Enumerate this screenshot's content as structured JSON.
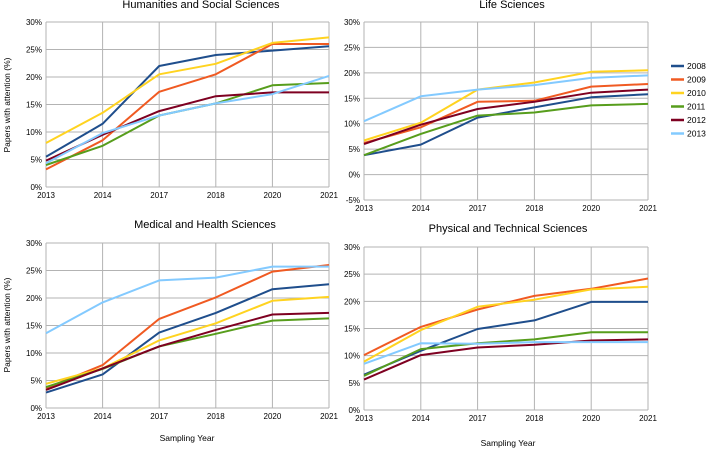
{
  "chart_data": {
    "type": "line",
    "series_colors": {
      "2008": "#1f4e8c",
      "2009": "#f05a22",
      "2010": "#ffd320",
      "2011": "#579d1c",
      "2012": "#7e0021",
      "2013": "#83caff"
    },
    "legend": [
      "2008",
      "2009",
      "2010",
      "2011",
      "2012",
      "2013"
    ],
    "panels": [
      {
        "title": "Humanities and Social Sciences",
        "categories": [
          "2013",
          "2014",
          "2017",
          "2018",
          "2020",
          "2021"
        ],
        "y_ticks": [
          "0%",
          "5%",
          "10%",
          "15%",
          "20%",
          "25%",
          "30%"
        ],
        "ylim": [
          0,
          30
        ],
        "ylabel": "Papers with attention (%)",
        "xlabel": "",
        "series": [
          {
            "name": "2008",
            "values": [
              5.5,
              11.5,
              22.0,
              24.0,
              24.8,
              25.6
            ]
          },
          {
            "name": "2009",
            "values": [
              3.2,
              8.5,
              17.3,
              20.5,
              26.0,
              26.0
            ]
          },
          {
            "name": "2010",
            "values": [
              8.0,
              13.5,
              20.5,
              22.4,
              26.2,
              27.2
            ]
          },
          {
            "name": "2011",
            "values": [
              4.0,
              7.5,
              13.0,
              15.2,
              18.5,
              18.9
            ]
          },
          {
            "name": "2012",
            "values": [
              4.8,
              9.5,
              13.8,
              16.5,
              17.2,
              17.2
            ]
          },
          {
            "name": "2013",
            "values": [
              4.3,
              9.8,
              13.0,
              15.2,
              16.9,
              20.2
            ]
          }
        ]
      },
      {
        "title": "Life Sciences",
        "categories": [
          "2013",
          "2014",
          "2017",
          "2018",
          "2020",
          "2021"
        ],
        "y_ticks": [
          "-5%",
          "0%",
          "5%",
          "10%",
          "15%",
          "20%",
          "25%",
          "30%"
        ],
        "ylim": [
          -5,
          30
        ],
        "ylabel": "",
        "xlabel": "",
        "series": [
          {
            "name": "2008",
            "values": [
              3.8,
              5.9,
              11.2,
              13.2,
              15.2,
              15.8
            ]
          },
          {
            "name": "2009",
            "values": [
              6.2,
              9.3,
              14.3,
              14.5,
              17.3,
              17.8
            ]
          },
          {
            "name": "2010",
            "values": [
              6.7,
              10.2,
              16.7,
              18.1,
              20.2,
              20.5
            ]
          },
          {
            "name": "2011",
            "values": [
              3.8,
              8.0,
              11.6,
              12.2,
              13.6,
              13.9
            ]
          },
          {
            "name": "2012",
            "values": [
              6.0,
              9.8,
              12.9,
              14.3,
              16.1,
              16.7
            ]
          },
          {
            "name": "2013",
            "values": [
              10.5,
              15.4,
              16.7,
              17.6,
              19.0,
              19.5
            ]
          }
        ]
      },
      {
        "title": "Medical and Health Sciences",
        "categories": [
          "2013",
          "2014",
          "2017",
          "2018",
          "2020",
          "2021"
        ],
        "y_ticks": [
          "0%",
          "5%",
          "10%",
          "15%",
          "20%",
          "25%",
          "30%"
        ],
        "ylim": [
          0,
          30
        ],
        "ylabel": "Papers with attention (%)",
        "xlabel": "Sampling Year",
        "series": [
          {
            "name": "2008",
            "values": [
              2.8,
              6.1,
              13.7,
              17.3,
              21.6,
              22.5
            ]
          },
          {
            "name": "2009",
            "values": [
              3.6,
              7.8,
              16.2,
              20.1,
              24.8,
              26.0
            ]
          },
          {
            "name": "2010",
            "values": [
              4.4,
              7.2,
              12.3,
              15.4,
              19.5,
              20.2
            ]
          },
          {
            "name": "2011",
            "values": [
              3.8,
              7.1,
              11.2,
              13.5,
              15.9,
              16.3
            ]
          },
          {
            "name": "2012",
            "values": [
              3.3,
              7.2,
              11.2,
              14.2,
              17.0,
              17.3
            ]
          },
          {
            "name": "2013",
            "values": [
              13.6,
              19.2,
              23.2,
              23.7,
              25.7,
              25.7
            ]
          }
        ]
      },
      {
        "title": "Physical and Technical Sciences",
        "categories": [
          "2013",
          "2014",
          "2017",
          "2018",
          "2020",
          "2021"
        ],
        "y_ticks": [
          "0%",
          "5%",
          "10%",
          "15%",
          "20%",
          "25%",
          "30%"
        ],
        "ylim": [
          0,
          30
        ],
        "ylabel": "",
        "xlabel": "Sampling Year",
        "series": [
          {
            "name": "2008",
            "values": [
              6.5,
              10.9,
              14.9,
              16.5,
              19.9,
              19.9
            ]
          },
          {
            "name": "2009",
            "values": [
              10.1,
              15.3,
              18.5,
              21.0,
              22.3,
              24.2
            ]
          },
          {
            "name": "2010",
            "values": [
              8.9,
              14.7,
              19.0,
              20.3,
              22.2,
              22.7
            ]
          },
          {
            "name": "2011",
            "values": [
              6.3,
              11.2,
              12.3,
              13.0,
              14.3,
              14.3
            ]
          },
          {
            "name": "2012",
            "values": [
              5.6,
              10.1,
              11.5,
              12.0,
              12.8,
              13.0
            ]
          },
          {
            "name": "2013",
            "values": [
              8.5,
              12.3,
              12.2,
              12.5,
              12.5,
              12.5
            ]
          }
        ]
      }
    ]
  }
}
